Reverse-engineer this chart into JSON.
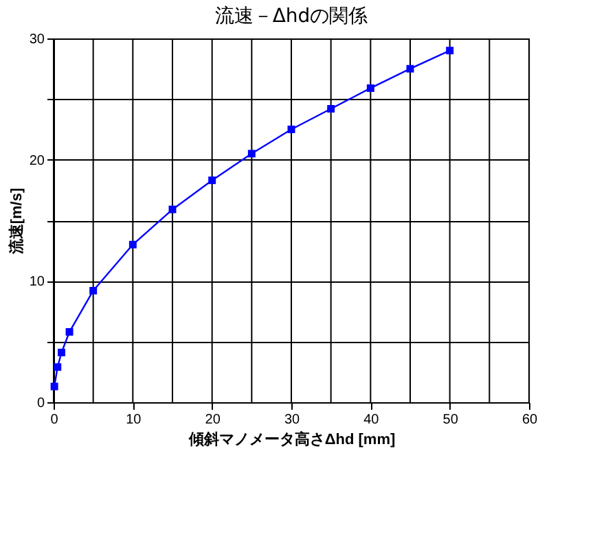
{
  "chart_data": {
    "type": "line",
    "title": "流速－Δhdの関係",
    "xlabel": "傾斜マノメータ高さΔhd [mm]",
    "ylabel": "流速[m/s]",
    "x": [
      0.1,
      0.5,
      1,
      2,
      5,
      10,
      15,
      20,
      25,
      30,
      35,
      40,
      45,
      50
    ],
    "series": [
      {
        "color": "#0000ff",
        "values": [
          1.3,
          2.9,
          4.1,
          5.8,
          9.2,
          13.0,
          15.9,
          18.3,
          20.5,
          22.5,
          24.2,
          25.9,
          27.5,
          29.0
        ]
      }
    ],
    "xlim": [
      0,
      60
    ],
    "ylim": [
      0,
      30
    ],
    "xticks": [
      0,
      {
        "value": 5,
        "label": null
      },
      10,
      {
        "value": 15,
        "label": null
      },
      20,
      {
        "value": 25,
        "label": null
      },
      30,
      {
        "value": 35,
        "label": null
      },
      40,
      {
        "value": 45,
        "label": null
      },
      50,
      {
        "value": 55,
        "label": null
      },
      60
    ],
    "yticks": [
      0,
      {
        "value": 5,
        "label": null
      },
      10,
      {
        "value": 15,
        "label": null
      },
      20,
      {
        "value": 25,
        "label": null
      },
      30
    ],
    "grid": true,
    "marker": "square",
    "line_style": "solid"
  }
}
